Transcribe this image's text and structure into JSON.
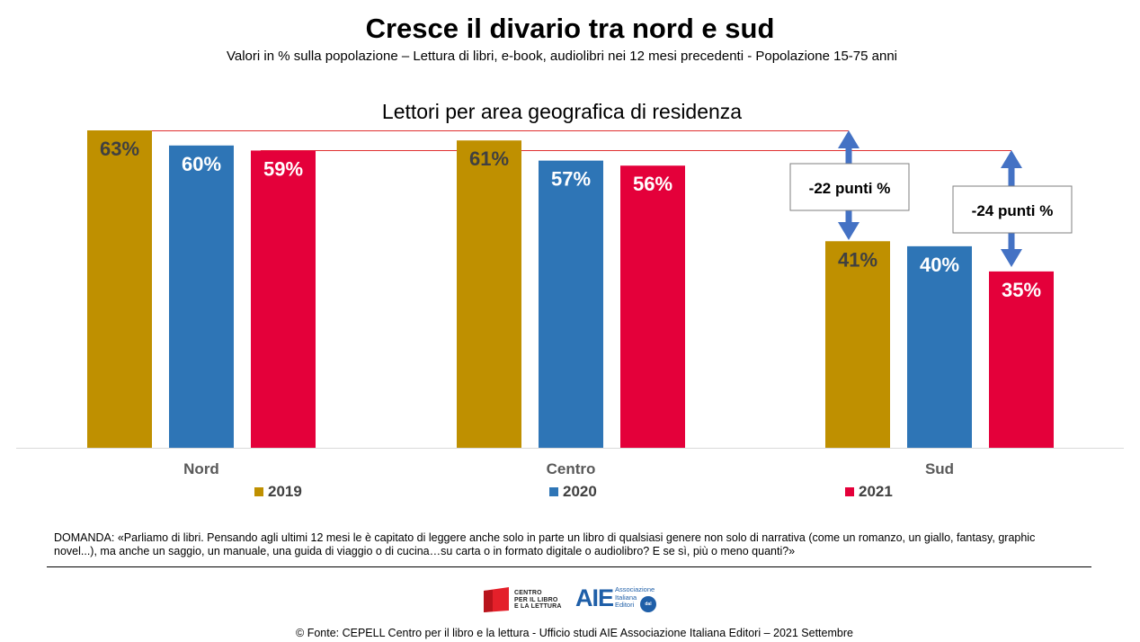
{
  "title": "Cresce il divario tra nord e sud",
  "subtitle": "Valori in % sulla popolazione – Lettura di libri, e-book, audiolibri nei 12 mesi precedenti - Popolazione 15-75 anni",
  "chart_title": "Lettori per area geografica di residenza",
  "colors": {
    "2019": "#bf9000",
    "2020": "#2e75b6",
    "2021": "#e4003a",
    "gap_line": "#e03030",
    "arrow": "#4472c4",
    "axis": "#d9d9d9"
  },
  "chart_data": {
    "type": "bar",
    "title": "Lettori per area geografica di residenza",
    "categories": [
      "Nord",
      "Centro",
      "Sud"
    ],
    "series": [
      {
        "name": "2019",
        "values": [
          63,
          61,
          41
        ]
      },
      {
        "name": "2020",
        "values": [
          60,
          57,
          40
        ]
      },
      {
        "name": "2021",
        "values": [
          59,
          56,
          35
        ]
      }
    ],
    "data_labels": [
      [
        "63%",
        "60%",
        "59%"
      ],
      [
        "61%",
        "57%",
        "56%"
      ],
      [
        "41%",
        "40%",
        "35%"
      ]
    ],
    "ylim": [
      0,
      63
    ],
    "grid": false,
    "legend_position": "bottom",
    "annotations": [
      {
        "text": "-22 punti %",
        "category": "Sud",
        "series": "2019",
        "from_value": 63,
        "to_value": 41
      },
      {
        "text": "-24 punti %",
        "category": "Sud",
        "series": "2021",
        "from_value": 59,
        "to_value": 35
      }
    ]
  },
  "legend": {
    "2019": "2019",
    "2020": "2020",
    "2021": "2021"
  },
  "question": "DOMANDA: «Parliamo di libri. Pensando agli ultimi 12 mesi le è capitato di leggere anche solo in parte un libro di qualsiasi genere non solo di narrativa (come un romanzo, un giallo, fantasy, graphic novel...),  ma anche un saggio, un manuale, una guida di viaggio o di cucina…su carta o in formato digitale o audiolibro? E se sì, più o meno quanti?»",
  "logos": {
    "cepell": [
      "CENTRO",
      "PER IL LIBRO",
      "E LA LETTURA"
    ],
    "aie_mark": "AIE",
    "aie_text": [
      "Associazione",
      "Italiana",
      "Editori"
    ],
    "aie_badge": "dal 1869"
  },
  "source": "© Fonte: CEPELL Centro per il libro e la lettura - Ufficio studi AIE Associazione Italiana Editori  – 2021 Settembre"
}
